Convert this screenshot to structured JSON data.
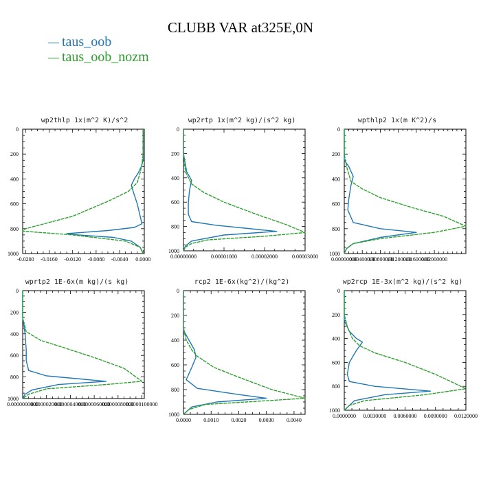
{
  "title": "CLUBB VAR at325E,0N",
  "legend": [
    {
      "label": "taus_oob",
      "color": "#1f77b4"
    },
    {
      "label": "taus_oob_nozm",
      "color": "#2ca02c"
    }
  ],
  "chart_data": [
    {
      "type": "line",
      "title": "wp2thlp  1x(m^2 K)/s^2",
      "xlim": [
        -0.0205,
        0.0002
      ],
      "ylim": [
        1000,
        0
      ],
      "xticks": [
        "-0.0200",
        "-0.0160",
        "-0.0120",
        "-0.0080",
        "-0.0040",
        "0.0000"
      ],
      "xtick_values": [
        -0.02,
        -0.016,
        -0.012,
        -0.008,
        -0.004,
        0.0
      ],
      "yticks": [
        0,
        200,
        400,
        600,
        800,
        1000
      ],
      "series": [
        {
          "name": "taus_oob",
          "color": "#1f77b4",
          "x": [
            0,
            0,
            -0.0003,
            -0.0008,
            -0.0015,
            -0.002,
            -0.0017,
            -0.001,
            -0.0005,
            -0.0002,
            -0.0015,
            -0.006,
            -0.013,
            -0.011,
            -0.005,
            -0.002,
            -0.0005,
            0
          ],
          "y": [
            0,
            250,
            300,
            350,
            400,
            450,
            500,
            600,
            700,
            760,
            790,
            815,
            840,
            850,
            870,
            900,
            950,
            1000
          ]
        },
        {
          "name": "taus_oob_nozm",
          "color": "#2ca02c",
          "x": [
            0,
            0,
            -0.0002,
            -0.0005,
            -0.001,
            -0.0025,
            -0.006,
            -0.012,
            -0.02,
            -0.0205,
            -0.012,
            -0.003,
            -0.0005,
            0
          ],
          "y": [
            0,
            200,
            280,
            350,
            430,
            500,
            580,
            700,
            800,
            820,
            850,
            900,
            950,
            1000
          ]
        }
      ]
    },
    {
      "type": "line",
      "title": "wp2rtp  1x(m^2 kg)/(s^2 kg)",
      "xlim": [
        0,
        3e-05
      ],
      "ylim": [
        1000,
        0
      ],
      "xticks": [
        "0.00000000",
        "0.00001000",
        "0.00002000",
        "0.00003000"
      ],
      "xtick_values": [
        0,
        1e-05,
        2e-05,
        3e-05
      ],
      "yticks": [
        0,
        200,
        400,
        600,
        800,
        1000
      ],
      "series": [
        {
          "name": "taus_oob",
          "color": "#1f77b4",
          "x": [
            0,
            0,
            8e-07,
            2e-06,
            1.5e-06,
            1.2e-06,
            1.2e-06,
            2e-06,
            8e-06,
            2.3e-05,
            1e-05,
            2e-06,
            5e-07,
            0
          ],
          "y": [
            0,
            200,
            350,
            420,
            500,
            600,
            700,
            760,
            790,
            840,
            870,
            920,
            960,
            1000
          ]
        },
        {
          "name": "taus_oob_nozm",
          "color": "#2ca02c",
          "x": [
            0,
            0,
            5e-07,
            2e-06,
            5e-06,
            1e-05,
            1.8e-05,
            2.5e-05,
            3e-05,
            2e-05,
            6e-06,
            2e-06,
            5e-07,
            0
          ],
          "y": [
            0,
            200,
            350,
            450,
            520,
            600,
            700,
            780,
            850,
            880,
            910,
            940,
            970,
            1000
          ]
        }
      ]
    },
    {
      "type": "line",
      "title": "wpthlp2  1x(m K^2)/s",
      "xlim": [
        0,
        0.027
      ],
      "ylim": [
        1000,
        0
      ],
      "xticks": [
        "0.00000000",
        "0.00400000",
        "0.00800000",
        "0.01200000",
        "0.01600000",
        "0.02000000"
      ],
      "xtick_values": [
        0,
        0.004,
        0.008,
        0.012,
        0.016,
        0.02
      ],
      "yticks": [
        0,
        200,
        400,
        600,
        800,
        1000
      ],
      "series": [
        {
          "name": "taus_oob",
          "color": "#1f77b4",
          "x": [
            0,
            0,
            0.001,
            0.002,
            0.0015,
            0.001,
            0.0008,
            0.002,
            0.008,
            0.016,
            0.008,
            0.002,
            0.0005,
            0
          ],
          "y": [
            0,
            250,
            300,
            380,
            450,
            560,
            650,
            750,
            800,
            830,
            870,
            920,
            960,
            1000
          ]
        },
        {
          "name": "taus_oob_nozm",
          "color": "#2ca02c",
          "x": [
            0,
            0,
            0.0005,
            0.0015,
            0.004,
            0.008,
            0.015,
            0.022,
            0.027,
            0.02,
            0.008,
            0.002,
            0.0005,
            0
          ],
          "y": [
            0,
            200,
            300,
            420,
            480,
            550,
            630,
            700,
            780,
            830,
            880,
            920,
            960,
            1000
          ]
        }
      ]
    },
    {
      "type": "line",
      "title": "wprtp2  1E-6x(m kg)/(s kg)",
      "xlim": [
        0,
        1.02e-05
      ],
      "ylim": [
        1000,
        0
      ],
      "xticks": [
        "0.0000000000",
        "0.0000020000",
        "0.0000040000",
        "0.0000060000",
        "0.0000080000",
        "0.0000100000"
      ],
      "xtick_values": [
        0,
        2e-06,
        4e-06,
        6e-06,
        8e-06,
        1e-05
      ],
      "yticks": [
        0,
        200,
        400,
        600,
        800,
        1000
      ],
      "series": [
        {
          "name": "taus_oob",
          "color": "#1f77b4",
          "x": [
            0,
            0,
            2e-07,
            3e-07,
            3e-07,
            5e-07,
            2e-06,
            7e-06,
            3e-06,
            8e-07,
            2e-07,
            0
          ],
          "y": [
            0,
            250,
            400,
            550,
            650,
            740,
            790,
            840,
            870,
            920,
            960,
            1000
          ]
        },
        {
          "name": "taus_oob_nozm",
          "color": "#2ca02c",
          "x": [
            0,
            0,
            3e-07,
            1.5e-06,
            3.5e-06,
            6e-06,
            8.5e-06,
            1e-05,
            7e-06,
            2e-06,
            5e-07,
            0
          ],
          "y": [
            0,
            250,
            380,
            460,
            530,
            620,
            720,
            840,
            870,
            910,
            960,
            1000
          ]
        }
      ]
    },
    {
      "type": "line",
      "title": "rcp2  1E-6x(kg^2)/(kg^2)",
      "xlim": [
        0,
        0.0044
      ],
      "ylim": [
        1000,
        0
      ],
      "xticks": [
        "0.0000",
        "0.0010",
        "0.0020",
        "0.0030",
        "0.0040"
      ],
      "xtick_values": [
        0,
        0.001,
        0.002,
        0.003,
        0.004
      ],
      "yticks": [
        0,
        200,
        400,
        600,
        800,
        1000
      ],
      "series": [
        {
          "name": "taus_oob",
          "color": "#1f77b4",
          "x": [
            0,
            0,
            0.0002,
            0.0004,
            0.00045,
            0.0003,
            0.0001,
            0.0005,
            0.002,
            0.003,
            0.0012,
            0.0003,
            0
          ],
          "y": [
            0,
            320,
            400,
            480,
            540,
            620,
            720,
            790,
            840,
            870,
            900,
            940,
            1000
          ]
        },
        {
          "name": "taus_oob_nozm",
          "color": "#2ca02c",
          "x": [
            0,
            0,
            0.0001,
            0.0003,
            0.0005,
            0.0011,
            0.002,
            0.0032,
            0.0044,
            0.003,
            0.0008,
            0.0002,
            0
          ],
          "y": [
            0,
            300,
            400,
            480,
            530,
            620,
            700,
            800,
            870,
            890,
            920,
            960,
            1000
          ]
        }
      ]
    },
    {
      "type": "line",
      "title": "wp2rcp  1E-3x(m^2 kg)/(s^2 kg)",
      "xlim": [
        0,
        0.012
      ],
      "ylim": [
        1000,
        0
      ],
      "xticks": [
        "0.0000000",
        "0.0030000",
        "0.0060000",
        "0.0090000",
        "0.0120000"
      ],
      "xtick_values": [
        0,
        0.003,
        0.006,
        0.009,
        0.012
      ],
      "yticks": [
        0,
        200,
        400,
        600,
        800,
        1000
      ],
      "series": [
        {
          "name": "taus_oob",
          "color": "#1f77b4",
          "x": [
            0,
            0,
            0.0005,
            0.0012,
            0.0018,
            0.0012,
            0.0005,
            0.0003,
            0.0005,
            0.003,
            0.0085,
            0.004,
            0.001,
            0
          ],
          "y": [
            0,
            250,
            340,
            400,
            430,
            500,
            600,
            700,
            760,
            800,
            840,
            870,
            920,
            1000
          ]
        },
        {
          "name": "taus_oob_nozm",
          "color": "#2ca02c",
          "x": [
            0,
            0,
            0.0003,
            0.0008,
            0.0015,
            0.003,
            0.006,
            0.009,
            0.011,
            0.012,
            0.008,
            0.002,
            0.0005,
            0
          ],
          "y": [
            0,
            200,
            300,
            400,
            460,
            520,
            600,
            700,
            780,
            820,
            870,
            920,
            960,
            1000
          ]
        }
      ]
    }
  ]
}
